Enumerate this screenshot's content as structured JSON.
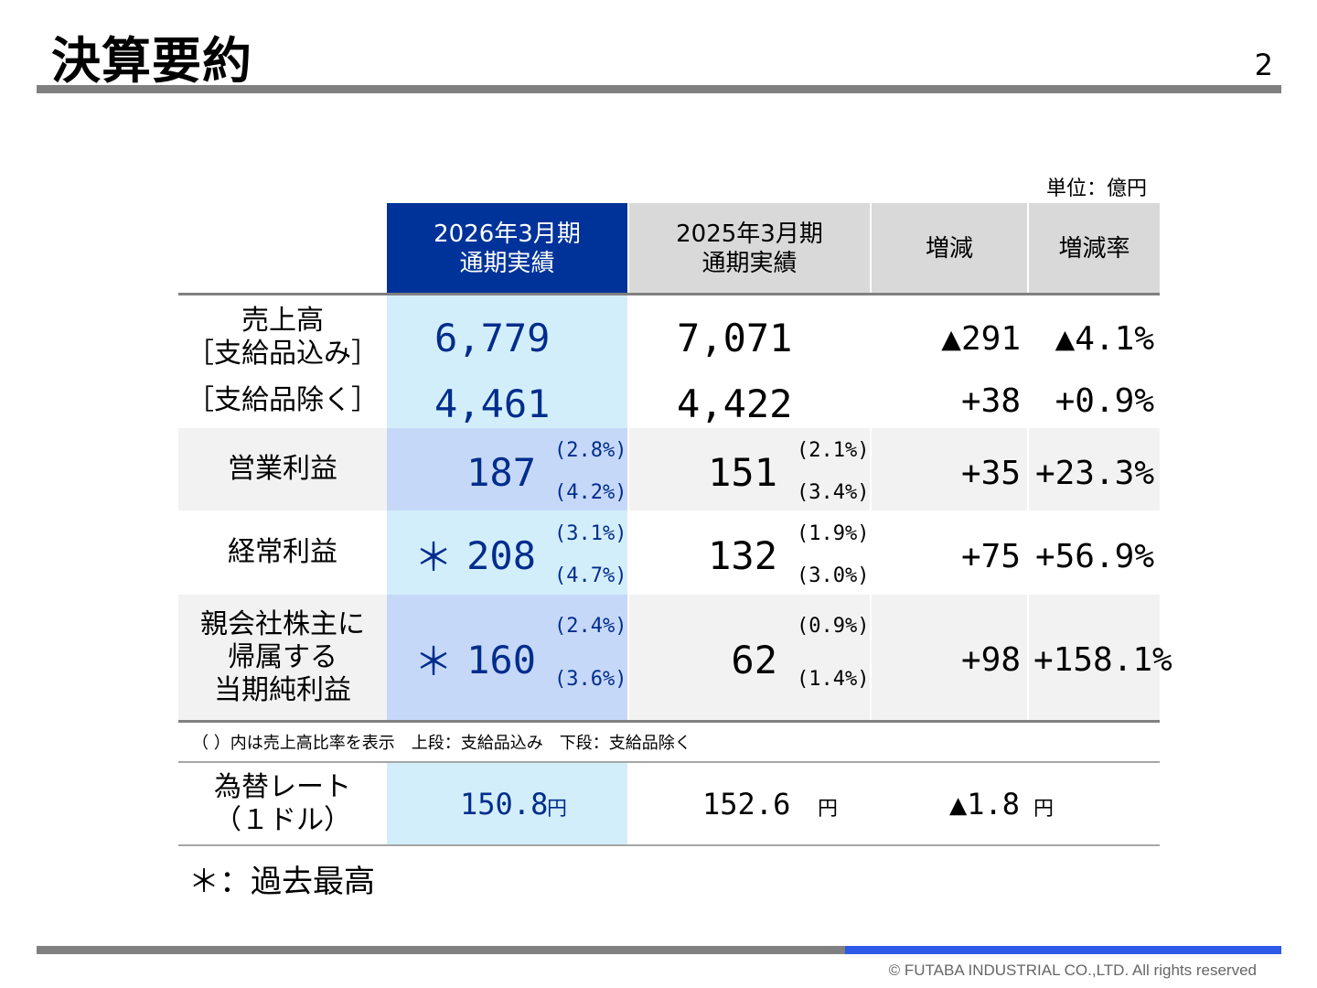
{
  "page": {
    "title": "決算要約",
    "page_number": "2",
    "unit": "単位：億円",
    "note": "（ ）内は売上高比率を表示　上段：支給品込み　下段：支給品除く",
    "footnote": "＊：過去最高",
    "copyright": "© FUTABA INDUSTRIAL CO.,LTD.   All rights reserved"
  },
  "table": {
    "headers": {
      "current_line1": "2026年3月期",
      "current_line2": "通期実績",
      "previous_line1": "2025年3月期",
      "previous_line2": "通期実績",
      "change": "増減",
      "change_rate": "増減率"
    },
    "sales": {
      "label1": "売上高",
      "label2": "［支給品込み］",
      "label3": "［支給品除く］",
      "incl": {
        "current": "6,779",
        "previous": "7,071",
        "change": "▲291",
        "rate": "▲4.1%"
      },
      "excl": {
        "current": "4,461",
        "previous": "4,422",
        "change": "+38",
        "rate": "+0.9%"
      }
    },
    "operating": {
      "label": "営業利益",
      "current": "187",
      "current_pct_upper": "(2.8%)",
      "current_pct_lower": "(4.2%)",
      "previous": "151",
      "previous_pct_upper": "(2.1%)",
      "previous_pct_lower": "(3.4%)",
      "change": "+35",
      "rate": "+23.3%"
    },
    "ordinary": {
      "label": "経常利益",
      "marker": "＊",
      "current": "208",
      "current_pct_upper": "(3.1%)",
      "current_pct_lower": "(4.7%)",
      "previous": "132",
      "previous_pct_upper": "(1.9%)",
      "previous_pct_lower": "(3.0%)",
      "change": "+75",
      "rate": "+56.9%"
    },
    "net": {
      "label1": "親会社株主に",
      "label2": "帰属する",
      "label3": "当期純利益",
      "marker": "＊",
      "current": "160",
      "current_pct_upper": "(2.4%)",
      "current_pct_lower": "(3.6%)",
      "previous": "62",
      "previous_pct_upper": "(0.9%)",
      "previous_pct_lower": "(1.4%)",
      "change": "+98",
      "rate": "+158.1%"
    },
    "fx": {
      "label1": "為替レート",
      "label2": "（１ドル）",
      "current": "150.8",
      "previous": "152.6",
      "change": "▲1.8",
      "yen": "円"
    }
  }
}
